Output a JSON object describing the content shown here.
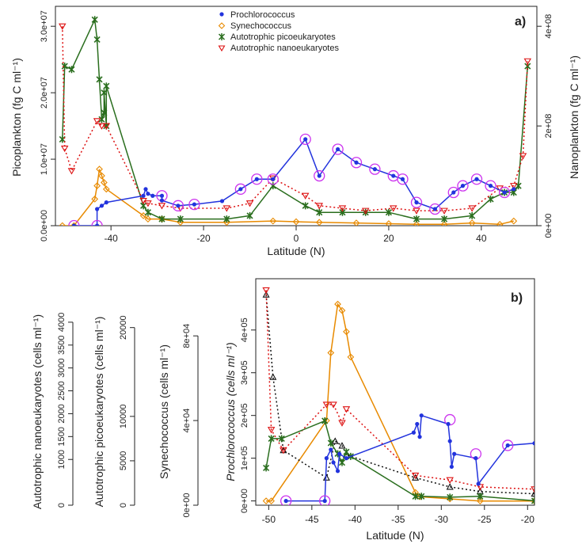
{
  "chart_data": [
    {
      "panel": "a)",
      "type": "line",
      "xlabel": "Latitude (N)",
      "ylabel_left": "Picoplankton (fg C ml⁻¹)",
      "ylabel_right": "Nanoplankton (fg C ml⁻¹)",
      "xlim": [
        -52,
        52
      ],
      "xticks": [
        -40,
        -20,
        0,
        20,
        40
      ],
      "xtick_labels": [
        "-40",
        "-20",
        "0",
        "20",
        "40"
      ],
      "ylim_left": [
        0,
        33000000
      ],
      "yticks_left": [
        0,
        10000000,
        20000000,
        30000000
      ],
      "ytick_labels_left": [
        "0.0e+00",
        "1.0e+07",
        "2.0e+07",
        "3.0e+07"
      ],
      "ylim_right": [
        0,
        440000000
      ],
      "yticks_right": [
        0,
        200000000,
        400000000
      ],
      "ytick_labels_right": [
        "0e+00",
        "2e+08",
        "4e+08"
      ],
      "legend": {
        "placement": "top-center",
        "entries": [
          "Prochlorococcus",
          "Synechococcus",
          "Autotrophic picoeukaryotes",
          "Autotrophic nanoeukaryotes"
        ]
      },
      "series": [
        {
          "name": "Prochlorococcus",
          "color": "#2233dd",
          "marker": "dot",
          "line": "solid",
          "points": [
            [
              -48,
              0
            ],
            [
              -43,
              0
            ],
            [
              -43,
              2500000
            ],
            [
              -42,
              3000000
            ],
            [
              -41,
              3500000
            ],
            [
              -33,
              4500000
            ],
            [
              -32.5,
              5500000
            ],
            [
              -32,
              4800000
            ],
            [
              -31,
              4500000
            ],
            [
              -29,
              4500000
            ],
            [
              -29,
              3800000
            ],
            [
              -25.5,
              3000000
            ],
            [
              -22,
              3200000
            ],
            [
              -16,
              3700000
            ],
            [
              -12,
              5500000
            ],
            [
              -8.5,
              7000000
            ],
            [
              -5,
              7000000
            ],
            [
              2,
              13000000
            ],
            [
              5,
              7500000
            ],
            [
              9,
              11500000
            ],
            [
              13,
              9500000
            ],
            [
              17,
              8500000
            ],
            [
              21,
              7500000
            ],
            [
              23,
              7000000
            ],
            [
              26,
              3500000
            ],
            [
              30,
              2500000
            ],
            [
              34,
              5000000
            ],
            [
              36,
              6000000
            ],
            [
              39,
              7000000
            ],
            [
              42,
              6000000
            ],
            [
              45,
              5000000
            ],
            [
              47,
              5500000
            ]
          ],
          "circled": [
            [
              -48,
              0
            ],
            [
              -43,
              0
            ],
            [
              -29,
              4500000
            ],
            [
              -25.5,
              3000000
            ],
            [
              -22,
              3200000
            ],
            [
              -12,
              5500000
            ],
            [
              -8.5,
              7000000
            ],
            [
              -5,
              7000000
            ],
            [
              2,
              13000000
            ],
            [
              5,
              7500000
            ],
            [
              9,
              11500000
            ],
            [
              13,
              9500000
            ],
            [
              17,
              8500000
            ],
            [
              21,
              7500000
            ],
            [
              23,
              7000000
            ],
            [
              26,
              3500000
            ],
            [
              30,
              2500000
            ],
            [
              34,
              5000000
            ],
            [
              36,
              6000000
            ],
            [
              39,
              7000000
            ],
            [
              42,
              6000000
            ],
            [
              45,
              5000000
            ]
          ]
        },
        {
          "name": "Synechococcus",
          "color": "#e88a00",
          "marker": "open-diamond",
          "line": "solid",
          "points": [
            [
              -50.5,
              0
            ],
            [
              -48,
              0
            ],
            [
              -43.5,
              4000000
            ],
            [
              -43,
              6000000
            ],
            [
              -42.5,
              8500000
            ],
            [
              -42,
              7500000
            ],
            [
              -41.5,
              6500000
            ],
            [
              -41,
              5500000
            ],
            [
              -33,
              1500000
            ],
            [
              -32,
              1000000
            ],
            [
              -29,
              1000000
            ],
            [
              -25,
              500000
            ],
            [
              -15,
              500000
            ],
            [
              -5,
              700000
            ],
            [
              0,
              600000
            ],
            [
              5,
              500000
            ],
            [
              13,
              400000
            ],
            [
              20,
              300000
            ],
            [
              26,
              200000
            ],
            [
              32,
              200000
            ],
            [
              38,
              400000
            ],
            [
              44,
              200000
            ],
            [
              47,
              700000
            ]
          ]
        },
        {
          "name": "Autotrophic picoeukaryotes",
          "color": "#2a6e1e",
          "marker": "star",
          "line": "solid",
          "points": [
            [
              -50.5,
              13000000
            ],
            [
              -50,
              24000000
            ],
            [
              -48.5,
              23500000
            ],
            [
              -43.5,
              31000000
            ],
            [
              -43,
              28000000
            ],
            [
              -42.5,
              22000000
            ],
            [
              -42,
              16000000
            ],
            [
              -41.5,
              17000000
            ],
            [
              -41.5,
              20000000
            ],
            [
              -41,
              15000000
            ],
            [
              -41,
              21000000
            ],
            [
              -33,
              3000000
            ],
            [
              -32,
              2000000
            ],
            [
              -29,
              1000000
            ],
            [
              -25,
              1000000
            ],
            [
              -15,
              1000000
            ],
            [
              -10,
              1500000
            ],
            [
              -5,
              6000000
            ],
            [
              2,
              3000000
            ],
            [
              5,
              2000000
            ],
            [
              10,
              2000000
            ],
            [
              15,
              2000000
            ],
            [
              20,
              2000000
            ],
            [
              26,
              1000000
            ],
            [
              32,
              1000000
            ],
            [
              38,
              1500000
            ],
            [
              42,
              4000000
            ],
            [
              45,
              5000000
            ],
            [
              47,
              5000000
            ],
            [
              48,
              6000000
            ],
            [
              50,
              24000000
            ]
          ]
        },
        {
          "name": "Autotrophic nanoeukaryotes",
          "color": "#dd1111",
          "marker": "open-triangle-down",
          "line": "dotted",
          "points": [
            [
              -50.5,
              400000000
            ],
            [
              -50,
              155000000
            ],
            [
              -48.5,
              110000000
            ],
            [
              -43,
              210000000
            ],
            [
              -42,
              200000000
            ],
            [
              -41,
              200000000
            ],
            [
              -33,
              50000000
            ],
            [
              -32,
              45000000
            ],
            [
              -29,
              40000000
            ],
            [
              -25,
              35000000
            ],
            [
              -15,
              35000000
            ],
            [
              -10,
              45000000
            ],
            [
              -5,
              95000000
            ],
            [
              2,
              60000000
            ],
            [
              5,
              40000000
            ],
            [
              10,
              35000000
            ],
            [
              15,
              30000000
            ],
            [
              21,
              35000000
            ],
            [
              26,
              30000000
            ],
            [
              32,
              30000000
            ],
            [
              38,
              35000000
            ],
            [
              44,
              75000000
            ],
            [
              47,
              80000000
            ],
            [
              49,
              140000000
            ],
            [
              50,
              330000000
            ]
          ]
        }
      ]
    },
    {
      "panel": "b)",
      "type": "line",
      "xlabel": "Latitude (N)",
      "xlim": [
        -51.5,
        -19.2
      ],
      "xticks": [
        -50,
        -45,
        -40,
        -35,
        -30,
        -25,
        -20
      ],
      "xtick_labels": [
        "-50",
        "-45",
        "-40",
        "-35",
        "-30",
        "-25",
        "-20"
      ],
      "axes": [
        {
          "label": "Prochlorococcus (cells ml⁻¹)",
          "lim": [
            -10000,
            520000
          ],
          "ticks": [
            0,
            100000,
            200000,
            300000,
            400000
          ],
          "tick_labels": [
            "0e+00",
            "1e+05",
            "2e+05",
            "3e+05",
            "4e+05"
          ]
        },
        {
          "label": "Synechococcus (cells ml⁻¹)",
          "lim": [
            0,
            107000
          ],
          "ticks": [
            0,
            40000,
            80000
          ],
          "tick_labels": [
            "0e+00",
            "4e+04",
            "8e+04"
          ]
        },
        {
          "label": "Autotrophic picoeukaryotes (cells ml⁻¹)",
          "lim": [
            0,
            25500
          ],
          "ticks": [
            0,
            5000,
            10000,
            20000
          ],
          "tick_labels": [
            "0",
            "5000",
            "10000",
            "20000"
          ]
        },
        {
          "label": "Autotrophic nanoeukaryotes (cells ml⁻¹)",
          "lim": [
            0,
            4950
          ],
          "ticks": [
            0,
            1000,
            1500,
            2000,
            2500,
            3000,
            3500,
            4000
          ],
          "tick_labels": [
            "0",
            "1000",
            "1500",
            "2000",
            "2500",
            "3000",
            "3500",
            "4000"
          ]
        }
      ],
      "series": [
        {
          "name": "Prochlorococcus",
          "color": "#2233dd",
          "marker": "dot",
          "line": "solid",
          "points": [
            [
              -48,
              0
            ],
            [
              -43.5,
              0
            ],
            [
              -43.3,
              100000
            ],
            [
              -42.8,
              120000
            ],
            [
              -42.5,
              90000
            ],
            [
              -42,
              70000
            ],
            [
              -41.8,
              110000
            ],
            [
              -41,
              100000
            ],
            [
              -33.2,
              160000
            ],
            [
              -32.8,
              180000
            ],
            [
              -32.5,
              150000
            ],
            [
              -32.3,
              200000
            ],
            [
              -29.2,
              180000
            ],
            [
              -29,
              140000
            ],
            [
              -28.8,
              80000
            ],
            [
              -28.5,
              110000
            ],
            [
              -26,
              100000
            ],
            [
              -25.7,
              40000
            ],
            [
              -22.3,
              130000
            ],
            [
              -19.2,
              135000
            ]
          ],
          "circled": [
            [
              -48,
              0
            ],
            [
              -43.5,
              0
            ],
            [
              -29,
              190000
            ],
            [
              -26,
              110000
            ],
            [
              -22.3,
              130000
            ]
          ]
        },
        {
          "name": "Synechococcus",
          "color": "#e88a00",
          "marker": "open-diamond",
          "line": "solid",
          "points": [
            [
              -50.3,
              2000
            ],
            [
              -49.7,
              2000
            ],
            [
              -43.3,
              40000
            ],
            [
              -42.8,
              72000
            ],
            [
              -42,
              95000
            ],
            [
              -41.5,
              92000
            ],
            [
              -41,
              82000
            ],
            [
              -40.5,
              70000
            ],
            [
              -33,
              6000
            ],
            [
              -32.5,
              4000
            ],
            [
              -29,
              3000
            ],
            [
              -25.5,
              2000
            ],
            [
              -19.2,
              2000
            ]
          ]
        },
        {
          "name": "Autotrophic picoeukaryotes",
          "color": "#2a6e1e",
          "marker": "star",
          "line": "solid",
          "points": [
            [
              -50.3,
              4200
            ],
            [
              -49.7,
              7500
            ],
            [
              -48.5,
              7500
            ],
            [
              -43.5,
              9500
            ],
            [
              -42.8,
              7000
            ],
            [
              -42,
              5800
            ],
            [
              -41.5,
              4800
            ],
            [
              -41,
              6000
            ],
            [
              -40.5,
              5500
            ],
            [
              -33,
              1000
            ],
            [
              -32.3,
              1000
            ],
            [
              -29,
              900
            ],
            [
              -25.5,
              1000
            ],
            [
              -19.2,
              500
            ]
          ]
        },
        {
          "name": "Autotrophic nanoeukaryotes",
          "color": "#dd1111",
          "marker": "open-triangle-down",
          "line": "dotted",
          "points": [
            [
              -50.3,
              4700
            ],
            [
              -49.7,
              1650
            ],
            [
              -48.3,
              1200
            ],
            [
              -43.3,
              2200
            ],
            [
              -42.5,
              2200
            ],
            [
              -41.5,
              1800
            ],
            [
              -41,
              2100
            ],
            [
              -33,
              650
            ],
            [
              -29,
              550
            ],
            [
              -25.5,
              400
            ],
            [
              -19.2,
              350
            ]
          ]
        },
        {
          "name": "",
          "color": "#111111",
          "marker": "open-triangle-up",
          "line": "dotted",
          "points": [
            [
              -50.3,
              4600
            ],
            [
              -49.5,
              2800
            ],
            [
              -48.3,
              1200
            ],
            [
              -43.3,
              600
            ],
            [
              -42.3,
              1400
            ],
            [
              -41.5,
              1300
            ],
            [
              -41,
              1100
            ],
            [
              -33,
              600
            ],
            [
              -29,
              400
            ],
            [
              -25.5,
              300
            ],
            [
              -19.2,
              250
            ]
          ]
        }
      ]
    }
  ]
}
